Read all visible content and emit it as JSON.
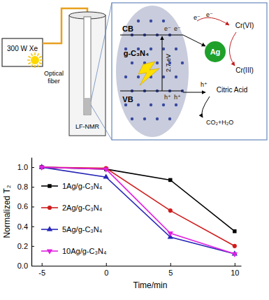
{
  "chart_data": {
    "type": "line",
    "xlabel": "Time/min",
    "ylabel": "Normalized T₂",
    "x": [
      -5,
      0,
      5,
      10
    ],
    "xlim": [
      -5.8,
      10.5
    ],
    "xticks": [
      -5,
      0,
      5,
      10
    ],
    "ylim": [
      0,
      1.1
    ],
    "yticks": [
      {
        "value": 0,
        "label": "0.0"
      },
      0.2,
      0.4,
      0.6,
      0.8,
      {
        "value": 1,
        "label": "1.0"
      }
    ],
    "legend": "left",
    "series": [
      {
        "name": "1Ag/g-C₃N₄",
        "color": "#000000",
        "marker": "square",
        "values": [
          1.0,
          0.98,
          0.87,
          0.35
        ]
      },
      {
        "name": "2Ag/g-C₃N₄",
        "color": "#d01c1c",
        "marker": "circle",
        "values": [
          1.0,
          0.99,
          0.56,
          0.2
        ]
      },
      {
        "name": "5Ag/g-C₃N₄",
        "color": "#2626b8",
        "marker": "triangle",
        "values": [
          1.0,
          0.9,
          0.29,
          0.12
        ]
      },
      {
        "name": "10Ag/g-C₃N₄",
        "color": "#e020e0",
        "marker": "triangle-down",
        "values": [
          1.0,
          0.98,
          0.33,
          0.12
        ]
      }
    ]
  },
  "diagram": {
    "lamp": "300 W Xe",
    "fiber": "Optical fiber",
    "instrument": "LF-NMR",
    "catalyst": "g-C₃N₄",
    "cb": "CB",
    "vb": "VB",
    "band_gap": "2.7 eV",
    "electron": "e⁻",
    "hole": "h⁺",
    "metal": "Ag",
    "reactant": "Cr(VI)",
    "product": "Cr(III)",
    "scavenger": "Citric Acid",
    "oxidation_product": "CO₂+H₂O"
  }
}
